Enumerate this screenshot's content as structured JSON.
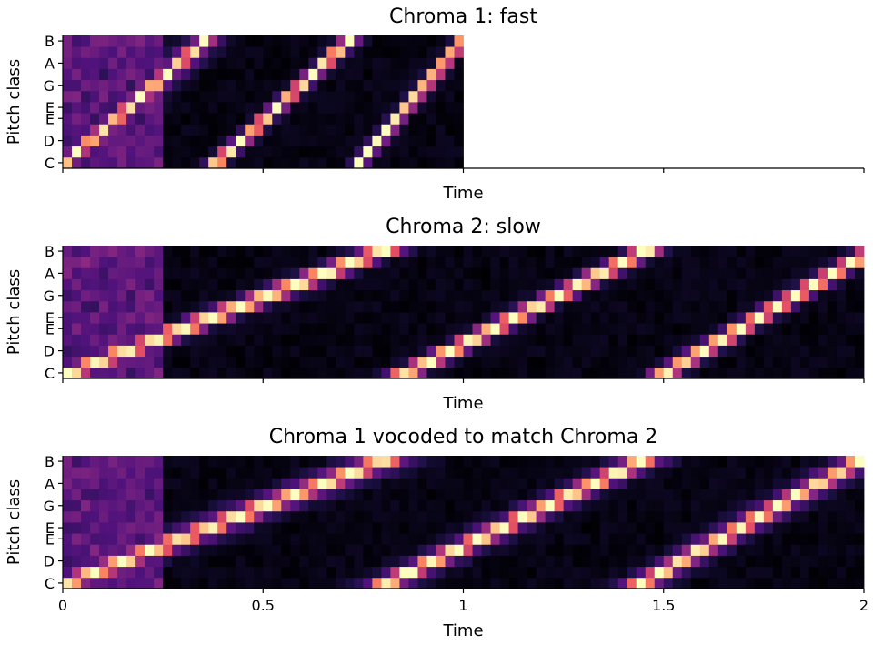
{
  "chart_data": [
    {
      "type": "heatmap",
      "title": "Chroma 1: fast",
      "xlabel": "Time",
      "ylabel": "Pitch class",
      "y_tick_labels": [
        "C",
        "D",
        "E",
        "E",
        "G",
        "A",
        "B"
      ],
      "x_tick_values": [
        0,
        0.5,
        1,
        1.5,
        2
      ],
      "x_tick_labels_shown": false,
      "xlim": [
        0,
        2
      ],
      "data_extent": [
        0,
        1
      ],
      "colormap": "magma",
      "pattern": "three ascending chromatic sweeps over the 12 pitch classes, starting near 0, 0.35 and 0.72",
      "sweeps": [
        {
          "start": -0.01,
          "end": 0.37,
          "halo": 0.045
        },
        {
          "start": 0.37,
          "end": 0.73,
          "halo": 0.015
        },
        {
          "start": 0.73,
          "end": 1.01,
          "halo": 0.012
        }
      ]
    },
    {
      "type": "heatmap",
      "title": "Chroma 2: slow",
      "xlabel": "Time",
      "ylabel": "Pitch class",
      "y_tick_labels": [
        "C",
        "D",
        "E",
        "E",
        "G",
        "A",
        "B"
      ],
      "x_tick_values": [
        0,
        0.5,
        1,
        1.5,
        2
      ],
      "x_tick_labels_shown": false,
      "xlim": [
        0,
        2
      ],
      "data_extent": [
        0,
        2
      ],
      "colormap": "magma",
      "pattern": "three slower ascending chromatic sweeps, starting near 0, 0.8 and 1.45",
      "sweeps": [
        {
          "start": -0.02,
          "end": 0.83,
          "halo": 0.03
        },
        {
          "start": 0.83,
          "end": 1.48,
          "halo": 0.02
        },
        {
          "start": 1.48,
          "end": 2.04,
          "halo": 0.02
        }
      ]
    },
    {
      "type": "heatmap",
      "title": "Chroma 1 vocoded to match Chroma 2",
      "xlabel": "Time",
      "ylabel": "Pitch class",
      "y_tick_labels": [
        "C",
        "D",
        "E",
        "E",
        "G",
        "A",
        "B"
      ],
      "x_tick_values": [
        0,
        0.5,
        1,
        1.5,
        2
      ],
      "x_tick_labels": [
        "0",
        "0.5",
        "1",
        "1.5",
        "2"
      ],
      "x_tick_labels_shown": true,
      "xlim": [
        0,
        2
      ],
      "data_extent": [
        0,
        2
      ],
      "colormap": "magma",
      "pattern": "time-stretched version of chroma 1 with smeared energy, aligned to the slow sweeps",
      "sweeps": [
        {
          "start": -0.03,
          "end": 0.83,
          "halo": 0.07
        },
        {
          "start": 0.78,
          "end": 1.47,
          "halo": 0.045
        },
        {
          "start": 1.42,
          "end": 2.01,
          "halo": 0.045
        }
      ]
    }
  ]
}
